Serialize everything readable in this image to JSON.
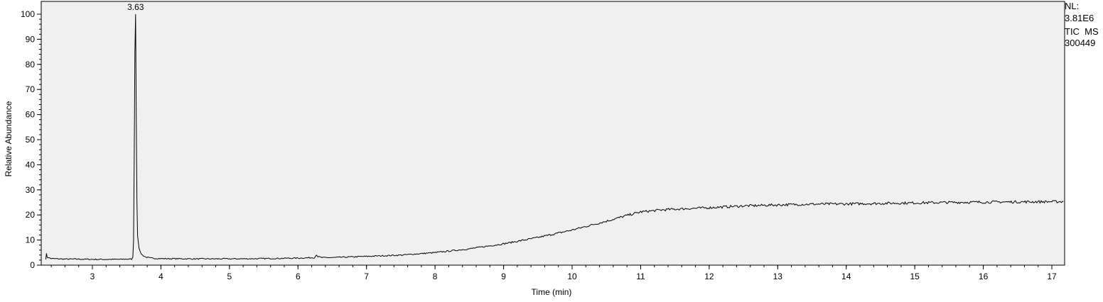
{
  "side_info": {
    "nl_label": "NL:",
    "nl_value": "3.81E6",
    "scan_filter": "TIC  MS",
    "file_name": "300449"
  },
  "colors": {
    "plot_background": "#f0f0f0",
    "trace": "#000000",
    "axis": "#000000"
  },
  "chart_data": {
    "type": "line",
    "xlabel": "Time (min)",
    "ylabel": "Relative Abundance",
    "xlim": [
      2.3,
      17.17
    ],
    "ylim": [
      0,
      100
    ],
    "x_ticks": [
      3,
      4,
      5,
      6,
      7,
      8,
      9,
      10,
      11,
      12,
      13,
      14,
      15,
      16,
      17
    ],
    "y_ticks": [
      0,
      10,
      20,
      30,
      40,
      50,
      60,
      70,
      80,
      90,
      100
    ],
    "x_minor_step": 0.2,
    "y_minor_step": 2,
    "grid": false,
    "annotations": [
      {
        "x": 3.63,
        "y": 100,
        "label": "3.63"
      }
    ],
    "series": [
      {
        "points": [
          [
            2.32,
            2.5
          ],
          [
            2.33,
            4.5
          ],
          [
            2.34,
            3.2
          ],
          [
            2.4,
            2.6
          ],
          [
            2.6,
            2.4
          ],
          [
            2.8,
            2.4
          ],
          [
            3.0,
            2.3
          ],
          [
            3.2,
            2.3
          ],
          [
            3.4,
            2.3
          ],
          [
            3.5,
            2.4
          ],
          [
            3.57,
            2.4
          ],
          [
            3.59,
            3
          ],
          [
            3.6,
            10
          ],
          [
            3.61,
            40
          ],
          [
            3.62,
            85
          ],
          [
            3.63,
            100
          ],
          [
            3.64,
            60
          ],
          [
            3.65,
            25
          ],
          [
            3.66,
            12
          ],
          [
            3.68,
            7
          ],
          [
            3.7,
            5
          ],
          [
            3.73,
            4
          ],
          [
            3.78,
            3.2
          ],
          [
            3.85,
            2.8
          ],
          [
            4.0,
            2.6
          ],
          [
            4.5,
            2.5
          ],
          [
            5.0,
            2.5
          ],
          [
            5.5,
            2.6
          ],
          [
            6.0,
            2.8
          ],
          [
            6.24,
            3.0
          ],
          [
            6.27,
            4.2
          ],
          [
            6.29,
            3.4
          ],
          [
            6.35,
            3.0
          ],
          [
            6.5,
            3.0
          ],
          [
            7.0,
            3.5
          ],
          [
            7.5,
            4.0
          ],
          [
            8.0,
            5.0
          ],
          [
            8.5,
            6.5
          ],
          [
            9.0,
            8.5
          ],
          [
            9.5,
            11.0
          ],
          [
            10.0,
            14.0
          ],
          [
            10.5,
            17.5
          ],
          [
            10.8,
            19.8
          ],
          [
            11.0,
            21.2
          ],
          [
            11.3,
            22.0
          ],
          [
            11.5,
            22.3
          ],
          [
            12.0,
            22.9
          ],
          [
            12.5,
            23.6
          ],
          [
            13.0,
            24.0
          ],
          [
            13.5,
            24.3
          ],
          [
            14.0,
            24.4
          ],
          [
            14.5,
            24.6
          ],
          [
            15.0,
            24.8
          ],
          [
            15.5,
            25.0
          ],
          [
            16.0,
            25.1
          ],
          [
            16.5,
            25.2
          ],
          [
            17.0,
            25.3
          ],
          [
            17.17,
            25.3
          ]
        ]
      }
    ]
  }
}
